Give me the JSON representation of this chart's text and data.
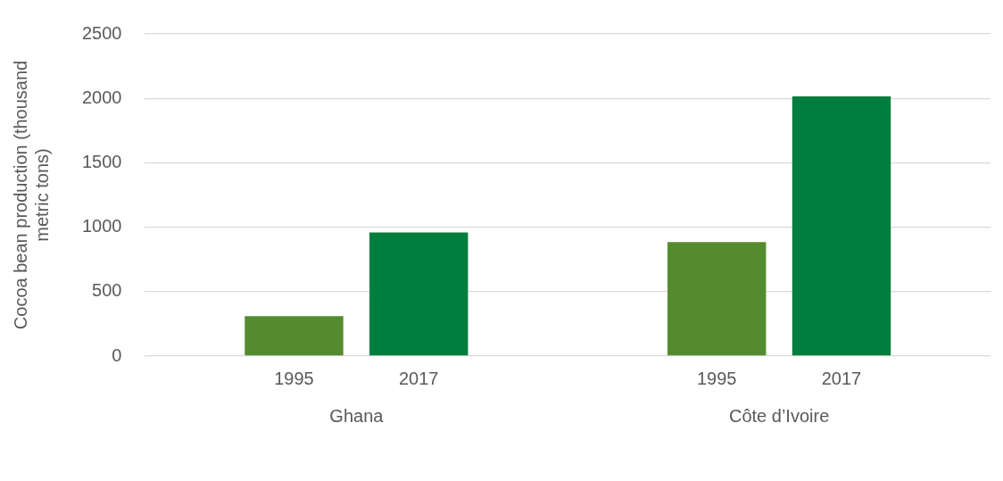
{
  "chart_data": {
    "type": "bar",
    "ylabel": "Cocoa bean production (thousand metric tons)",
    "categories": [
      "Ghana",
      "Côte d’Ivoire"
    ],
    "series": [
      {
        "name": "1995",
        "color": "#558b2f",
        "values": [
          310,
          885
        ]
      },
      {
        "name": "2017",
        "color": "#007e3d",
        "values": [
          960,
          2015
        ]
      }
    ],
    "ylim": [
      0,
      2500
    ],
    "yticks": [
      0,
      500,
      1000,
      1500,
      2000,
      2500
    ],
    "grid": "y",
    "legend": false
  }
}
